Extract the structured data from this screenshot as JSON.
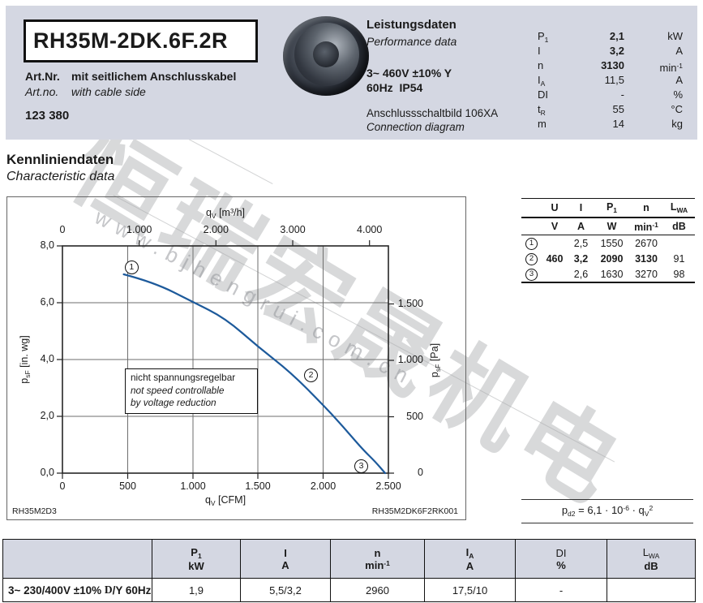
{
  "header": {
    "model": "RH35M-2DK.6F.2R",
    "art_label_de": "Art.Nr.",
    "art_desc_de": "mit seitlichem Anschlusskabel",
    "art_label_en": "Art.no.",
    "art_desc_en": "with cable side",
    "art_number": "123 380",
    "performance_title_de": "Leistungsdaten",
    "performance_title_en": "Performance data",
    "voltage_line1": "3~ 460V ±10% Y",
    "voltage_line2": "60Hz  IP54",
    "connection_de": "Anschlussschaltbild 106XA",
    "connection_en": "Connection diagram",
    "performance_rows": [
      {
        "sym": "P",
        "sub": "1",
        "value": "2,1",
        "unit": "kW",
        "usup": ""
      },
      {
        "sym": "I",
        "sub": "",
        "value": "3,2",
        "unit": "A",
        "usup": ""
      },
      {
        "sym": "n",
        "sub": "",
        "value": "3130",
        "unit": "min",
        "usup": "-1"
      },
      {
        "sym": "I",
        "sub": "A",
        "value": "11,5",
        "unit": "A",
        "usup": ""
      },
      {
        "sym": "DI",
        "sub": "",
        "value": "-",
        "unit": "%",
        "usup": ""
      },
      {
        "sym": "t",
        "sub": "R",
        "value": "55",
        "unit": "°C",
        "usup": ""
      },
      {
        "sym": "m",
        "sub": "",
        "value": "14",
        "unit": "kg",
        "usup": ""
      }
    ]
  },
  "section": {
    "heading_de": "Kennliniendaten",
    "heading_en": "Characteristic data"
  },
  "chart": {
    "top_axis_title_sym": "q",
    "top_axis_title_sub": "V",
    "top_axis_title_unit": " [m³/h]",
    "top_ticks": [
      "0",
      "1.000",
      "2.000",
      "3.000",
      "4.000"
    ],
    "bottom_axis_title_sym": "q",
    "bottom_axis_title_sub": "V",
    "bottom_axis_title_unit": " [CFM]",
    "bottom_ticks": [
      "0",
      "500",
      "1.000",
      "1.500",
      "2.000",
      "2.500"
    ],
    "left_axis_title_sym": "p",
    "left_axis_title_sub": "sF",
    "left_axis_title_unit": " [in. wg]",
    "left_ticks": [
      "8,0",
      "6,0",
      "4,0",
      "2,0",
      "0,0"
    ],
    "right_axis_title_sym": "p",
    "right_axis_title_sub": "sF",
    "right_axis_title_unit": " [Pa]",
    "right_ticks": [
      "1.500",
      "1.000",
      "500",
      "0"
    ],
    "note_line1": "nicht spannungsregelbar",
    "note_line2": "not speed controllable",
    "note_line3": "by voltage reduction",
    "corner_left": "RH35M2D3",
    "corner_right": "RH35M2DK6F2RK001"
  },
  "chart_data": {
    "type": "line",
    "x_bottom": {
      "label": "qV [CFM]",
      "ticks": [
        0,
        500,
        1000,
        1500,
        2000,
        2500
      ]
    },
    "x_top": {
      "label": "qV [m³/h]",
      "ticks": [
        0,
        1000,
        2000,
        3000,
        4000
      ]
    },
    "y_left": {
      "label": "psF [in. wg]",
      "range": [
        0,
        8
      ],
      "ticks": [
        0,
        2,
        4,
        6,
        8
      ]
    },
    "y_right": {
      "label": "psF [Pa]",
      "ticks": [
        0,
        500,
        1000,
        1500
      ]
    },
    "grid": true,
    "series": [
      {
        "name": "fan characteristic 460V 60Hz",
        "points_cfm_inwg": [
          [
            470,
            7.0
          ],
          [
            700,
            6.72
          ],
          [
            1000,
            6.03
          ],
          [
            1250,
            5.45
          ],
          [
            1500,
            4.45
          ],
          [
            1750,
            3.55
          ],
          [
            2000,
            2.4
          ],
          [
            2150,
            1.65
          ],
          [
            2300,
            0.85
          ],
          [
            2400,
            0.4
          ],
          [
            2475,
            0.0
          ]
        ]
      }
    ],
    "markers": [
      {
        "label": "1",
        "cfm": 527,
        "inwg": 7.27
      },
      {
        "label": "2",
        "cfm": 1903,
        "inwg": 3.47
      },
      {
        "label": "3",
        "cfm": 2289,
        "inwg": 0.27
      }
    ]
  },
  "mini_table": {
    "head1": [
      {
        "sym": "U",
        "sub": ""
      },
      {
        "sym": "I",
        "sub": ""
      },
      {
        "sym": "P",
        "sub": "1"
      },
      {
        "sym": "n",
        "sub": ""
      },
      {
        "sym": "L",
        "sub": "WA"
      }
    ],
    "head2": [
      {
        "unit": "V",
        "usup": ""
      },
      {
        "unit": "A",
        "usup": ""
      },
      {
        "unit": "W",
        "usup": ""
      },
      {
        "unit": "min",
        "usup": "-1"
      },
      {
        "unit": "dB",
        "usup": ""
      }
    ],
    "rows": [
      {
        "num": "1",
        "u": "",
        "i": "2,5",
        "p": "1550",
        "n": "2670",
        "lwa": ""
      },
      {
        "num": "2",
        "u": "460",
        "i": "3,2",
        "p": "2090",
        "n": "3130",
        "lwa": "91"
      },
      {
        "num": "3",
        "u": "",
        "i": "2,6",
        "p": "1630",
        "n": "3270",
        "lwa": "98"
      }
    ]
  },
  "formula": {
    "p1": "p",
    "sub1": "d2",
    "p2": " = 6,1 · 10",
    "sup1": "-6",
    "p3": " · q",
    "sub2": "V",
    "sup2": "2"
  },
  "bottom_table": {
    "row_label_pre": "3~ 230/400V ±10% ",
    "row_label_delta": "D",
    "row_label_post": "/Y 60Hz",
    "columns": [
      {
        "sym": "P",
        "sub": "1",
        "unit": "kW",
        "usup": ""
      },
      {
        "sym": "I",
        "sub": "",
        "unit": "A",
        "usup": ""
      },
      {
        "sym": "n",
        "sub": "",
        "unit": "min",
        "usup": "-1"
      },
      {
        "sym": "I",
        "sub": "A",
        "unit": "A",
        "usup": ""
      },
      {
        "sym": "DI",
        "sub": "",
        "unit": "%",
        "usup": ""
      },
      {
        "sym": "L",
        "sub": "WA",
        "unit": "dB",
        "usup": ""
      }
    ],
    "values": [
      "1,9",
      "5,5/3,2",
      "2960",
      "17,5/10",
      "-",
      ""
    ]
  },
  "watermark": {
    "text": "恒瑞宏晟机电",
    "url": "www.bjhengrui.com.cn"
  },
  "colors": {
    "band_bg": "#d4d7e2",
    "curve_blue": "#1d5a9b",
    "grid_gray": "#6e6e6e"
  }
}
